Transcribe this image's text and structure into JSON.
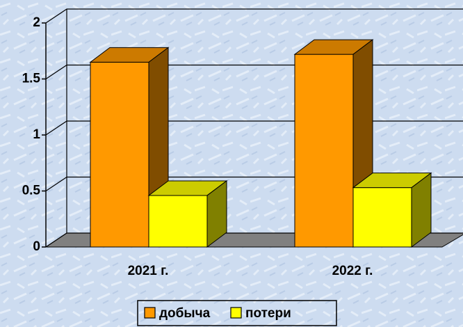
{
  "chart_data": {
    "type": "bar3d",
    "categories": [
      "2021 г.",
      "2022 г."
    ],
    "series": [
      {
        "name": "добыча",
        "color": "#ff9900",
        "values": [
          1.65,
          1.72
        ]
      },
      {
        "name": "потери",
        "color": "#ffff00",
        "values": [
          0.46,
          0.53
        ]
      }
    ],
    "ylim": [
      0,
      2
    ],
    "yticks": [
      0,
      0.5,
      1,
      1.5,
      2
    ],
    "grid": true,
    "legend": "bottom"
  }
}
